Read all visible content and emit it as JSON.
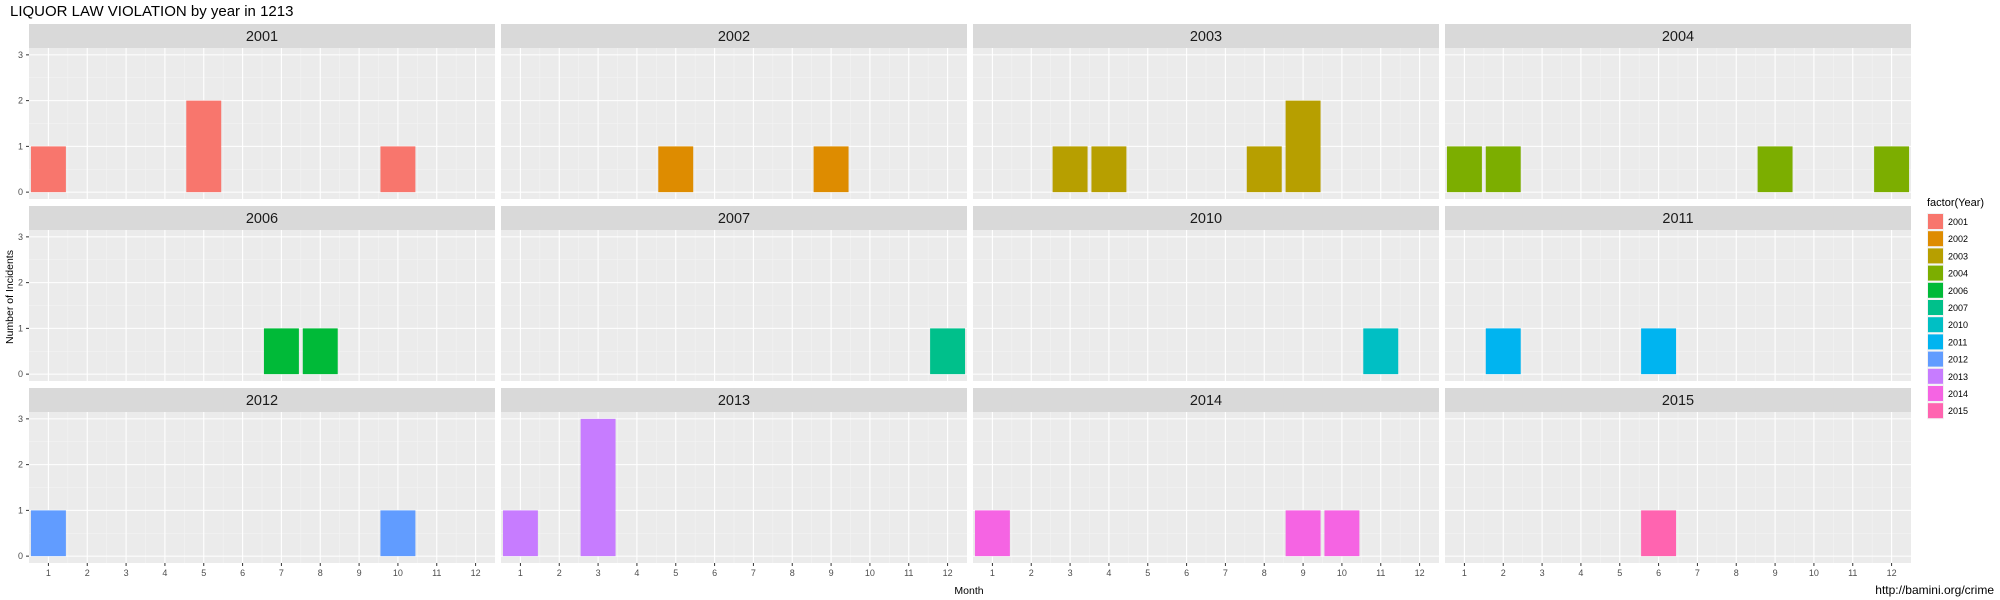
{
  "chart_data": {
    "type": "bar",
    "title": "LIQUOR LAW VIOLATION by year in 1213",
    "xlabel": "Month",
    "ylabel": "Number of Incidents",
    "x": [
      1,
      2,
      3,
      4,
      5,
      6,
      7,
      8,
      9,
      10,
      11,
      12
    ],
    "ylim": [
      0,
      3
    ],
    "yticks": [
      0,
      1,
      2,
      3
    ],
    "grid": true,
    "legend": {
      "title": "factor(Year)",
      "placement": "right",
      "entries": [
        {
          "label": "2001",
          "color": "#F8766D"
        },
        {
          "label": "2002",
          "color": "#DE8C00"
        },
        {
          "label": "2003",
          "color": "#B79F00"
        },
        {
          "label": "2004",
          "color": "#7CAE00"
        },
        {
          "label": "2006",
          "color": "#00BA38"
        },
        {
          "label": "2007",
          "color": "#00C08B"
        },
        {
          "label": "2010",
          "color": "#00BFC4"
        },
        {
          "label": "2011",
          "color": "#00B4F0"
        },
        {
          "label": "2012",
          "color": "#619CFF"
        },
        {
          "label": "2013",
          "color": "#C77CFF"
        },
        {
          "label": "2014",
          "color": "#F564E3"
        },
        {
          "label": "2015",
          "color": "#FF64B0"
        }
      ]
    },
    "facets": [
      {
        "year": "2001",
        "color": "#F8766D",
        "bars": [
          {
            "x": 1,
            "y": 1
          },
          {
            "x": 5,
            "y": 2
          },
          {
            "x": 10,
            "y": 1
          }
        ]
      },
      {
        "year": "2002",
        "color": "#DE8C00",
        "bars": [
          {
            "x": 5,
            "y": 1
          },
          {
            "x": 9,
            "y": 1
          }
        ]
      },
      {
        "year": "2003",
        "color": "#B79F00",
        "bars": [
          {
            "x": 3,
            "y": 1
          },
          {
            "x": 4,
            "y": 1
          },
          {
            "x": 8,
            "y": 1
          },
          {
            "x": 9,
            "y": 2
          }
        ]
      },
      {
        "year": "2004",
        "color": "#7CAE00",
        "bars": [
          {
            "x": 1,
            "y": 1
          },
          {
            "x": 2,
            "y": 1
          },
          {
            "x": 9,
            "y": 1
          },
          {
            "x": 12,
            "y": 1
          }
        ]
      },
      {
        "year": "2006",
        "color": "#00BA38",
        "bars": [
          {
            "x": 7,
            "y": 1
          },
          {
            "x": 8,
            "y": 1
          }
        ]
      },
      {
        "year": "2007",
        "color": "#00C08B",
        "bars": [
          {
            "x": 12,
            "y": 1
          }
        ]
      },
      {
        "year": "2010",
        "color": "#00BFC4",
        "bars": [
          {
            "x": 11,
            "y": 1
          }
        ]
      },
      {
        "year": "2011",
        "color": "#00B4F0",
        "bars": [
          {
            "x": 2,
            "y": 1
          },
          {
            "x": 6,
            "y": 1
          }
        ]
      },
      {
        "year": "2012",
        "color": "#619CFF",
        "bars": [
          {
            "x": 1,
            "y": 1
          },
          {
            "x": 10,
            "y": 1
          }
        ]
      },
      {
        "year": "2013",
        "color": "#C77CFF",
        "bars": [
          {
            "x": 1,
            "y": 1
          },
          {
            "x": 3,
            "y": 3
          }
        ]
      },
      {
        "year": "2014",
        "color": "#F564E3",
        "bars": [
          {
            "x": 1,
            "y": 1
          },
          {
            "x": 9,
            "y": 1
          },
          {
            "x": 10,
            "y": 1
          }
        ]
      },
      {
        "year": "2015",
        "color": "#FF64B0",
        "bars": [
          {
            "x": 6,
            "y": 1
          }
        ]
      }
    ],
    "caption": "http://bamini.org/crime"
  }
}
